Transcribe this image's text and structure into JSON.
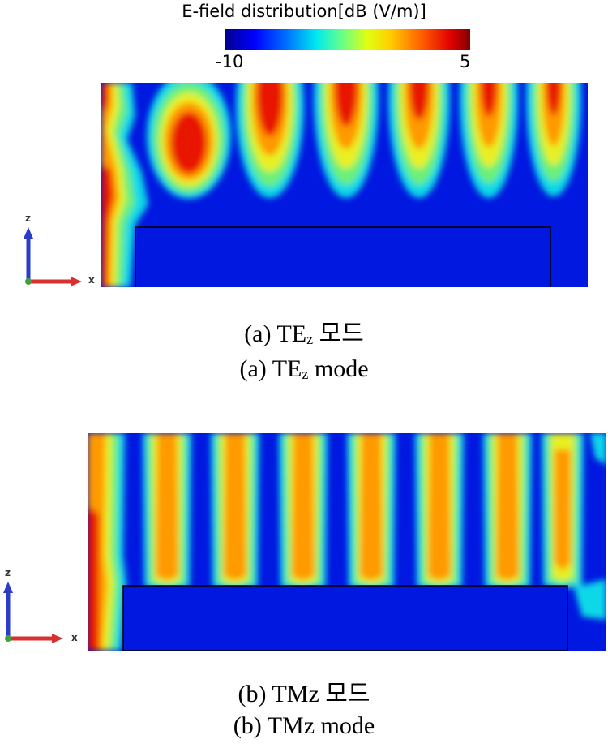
{
  "colorbar": {
    "title": "E-field distribution[dB (V/m)]",
    "min_label": "-10",
    "max_label": "5",
    "colors": [
      "#00008f",
      "#0000ff",
      "#0070ff",
      "#00e8f0",
      "#60ff90",
      "#e0ff10",
      "#ffd000",
      "#ff6000",
      "#e00000",
      "#800000"
    ]
  },
  "panel_a": {
    "caption_ko_prefix": "(a) TE",
    "caption_ko_sub": "z",
    "caption_ko_suffix": " 모드",
    "caption_en_prefix": "(a) TE",
    "caption_en_sub": "z",
    "caption_en_suffix": " mode",
    "axis_z": "z",
    "axis_x": "x"
  },
  "panel_b": {
    "caption_ko": "(b) TMz 모드",
    "caption_en": "(b) TMz mode",
    "axis_z": "z",
    "axis_x": "x"
  },
  "field_colors": {
    "background": "#0018e0",
    "cyan": "#10d8e8",
    "green": "#6cf078",
    "yellow": "#e8f020",
    "orange": "#ff9a00",
    "red": "#e81800"
  }
}
